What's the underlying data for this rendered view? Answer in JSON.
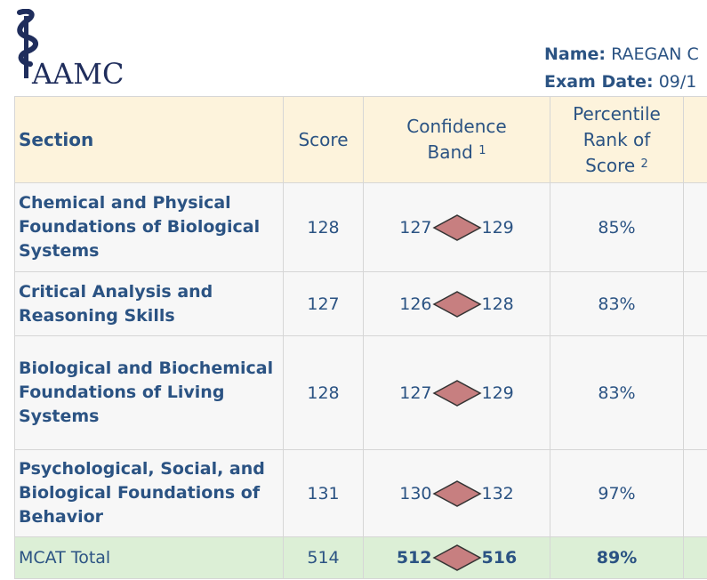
{
  "header": {
    "logo_text": "AAMC",
    "name_label": "Name:",
    "name_value": "RAEGAN C",
    "date_label": "Exam Date:",
    "date_value": "09/1"
  },
  "table": {
    "headers": {
      "section": "Section",
      "score": "Score",
      "band_line1": "Confidence",
      "band_line2": "Band",
      "band_sup": "1",
      "pct_line1": "Percentile",
      "pct_line2": "Rank of",
      "pct_line3": "Score",
      "pct_sup": "2"
    },
    "rows": [
      {
        "section": "Chemical and Physical Foundations of Biological Systems",
        "score": "128",
        "band_low": "127",
        "band_high": "129",
        "percentile": "85%"
      },
      {
        "section": "Critical Analysis and Reasoning Skills",
        "score": "127",
        "band_low": "126",
        "band_high": "128",
        "percentile": "83%"
      },
      {
        "section": "Biological and Biochemical Foundations of Living Systems",
        "score": "128",
        "band_low": "127",
        "band_high": "129",
        "percentile": "83%"
      },
      {
        "section": "Psychological, Social, and Biological Foundations of Behavior",
        "score": "131",
        "band_low": "130",
        "band_high": "132",
        "percentile": "97%"
      }
    ],
    "total": {
      "section": "MCAT Total",
      "score": "514",
      "band_low": "512",
      "band_high": "516",
      "percentile": "89%"
    }
  },
  "colors": {
    "header_bg": "#fdf3dc",
    "total_bg": "#dcefd6",
    "text": "#2b5383",
    "diamond_fill": "#c77f80"
  }
}
